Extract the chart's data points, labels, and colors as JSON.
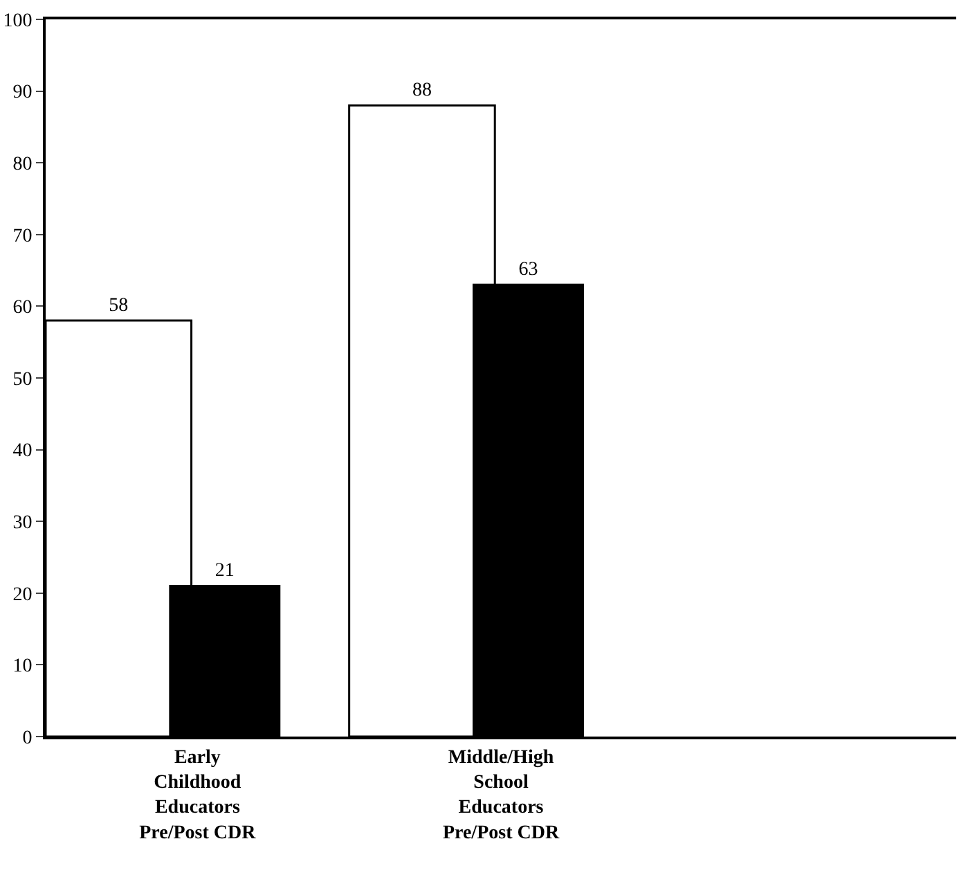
{
  "chart_data": {
    "type": "bar",
    "categories": [
      "Early Childhood Educators Pre/Post CDR",
      "Middle/High School Educators Pre/Post CDR",
      null
    ],
    "series": [
      {
        "color": "#ffffff",
        "values": [
          58,
          88,
          null
        ]
      },
      {
        "color": "#000000",
        "values": [
          21,
          63,
          null
        ]
      }
    ],
    "ylim": [
      0,
      100
    ],
    "yticks": [
      0,
      10,
      20,
      30,
      40,
      50,
      60,
      70,
      80,
      90,
      100
    ],
    "data_labels": true
  }
}
